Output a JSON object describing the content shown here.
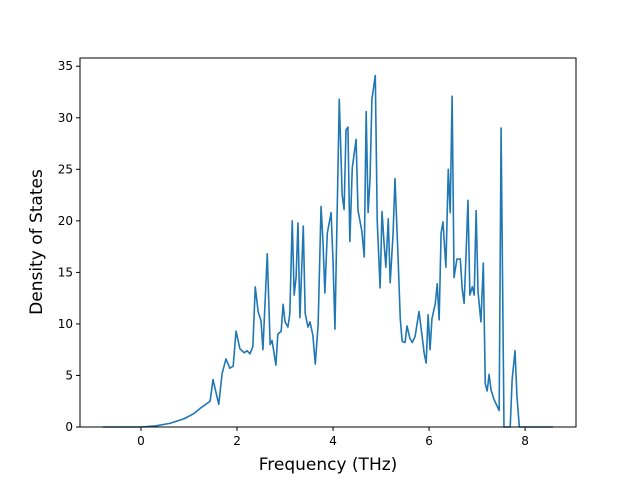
{
  "chart_data": {
    "type": "line",
    "x_label": "Frequency (THz)",
    "y_label": "Density of States",
    "x": [
      -0.8,
      0,
      0.3,
      0.6,
      0.9,
      1.1,
      1.23,
      1.44,
      1.5,
      1.62,
      1.69,
      1.77,
      1.85,
      1.92,
      1.98,
      2.06,
      2.15,
      2.21,
      2.27,
      2.33,
      2.38,
      2.44,
      2.5,
      2.54,
      2.63,
      2.69,
      2.73,
      2.81,
      2.85,
      2.92,
      2.96,
      3.0,
      3.06,
      3.1,
      3.15,
      3.19,
      3.23,
      3.27,
      3.31,
      3.38,
      3.42,
      3.48,
      3.52,
      3.58,
      3.63,
      3.69,
      3.75,
      3.79,
      3.83,
      3.88,
      3.96,
      4.0,
      4.04,
      4.13,
      4.19,
      4.23,
      4.27,
      4.31,
      4.35,
      4.4,
      4.48,
      4.52,
      4.6,
      4.65,
      4.69,
      4.73,
      4.77,
      4.81,
      4.88,
      4.92,
      4.98,
      5.02,
      5.06,
      5.1,
      5.15,
      5.19,
      5.25,
      5.29,
      5.35,
      5.4,
      5.44,
      5.5,
      5.54,
      5.6,
      5.65,
      5.71,
      5.79,
      5.85,
      5.9,
      5.94,
      5.98,
      6.02,
      6.06,
      6.13,
      6.17,
      6.21,
      6.25,
      6.29,
      6.35,
      6.4,
      6.44,
      6.48,
      6.52,
      6.58,
      6.65,
      6.69,
      6.73,
      6.77,
      6.81,
      6.85,
      6.9,
      6.94,
      6.98,
      7.02,
      7.08,
      7.13,
      7.17,
      7.21,
      7.25,
      7.29,
      7.35,
      7.42,
      7.46,
      7.5,
      7.56,
      7.69,
      7.73,
      7.79,
      7.83,
      7.88,
      8.58
    ],
    "series": [
      {
        "color": "#1f77b4",
        "values": [
          0,
          0,
          0.1,
          0.35,
          0.8,
          1.3,
          1.8,
          2.5,
          4.6,
          2.2,
          5.2,
          6.6,
          5.7,
          5.9,
          9.3,
          7.6,
          7.2,
          7.4,
          7.1,
          7.8,
          13.6,
          11.2,
          10.3,
          7.5,
          16.8,
          8.0,
          8.4,
          6.0,
          9.0,
          9.3,
          11.9,
          10.2,
          9.7,
          11.0,
          20.0,
          12.8,
          14.5,
          19.8,
          10.6,
          19.5,
          11.0,
          9.7,
          10.2,
          8.9,
          6.1,
          10.0,
          21.4,
          18.0,
          13.0,
          18.8,
          20.8,
          16.0,
          9.5,
          31.8,
          22.5,
          21.1,
          28.8,
          29.1,
          18.0,
          25.1,
          27.9,
          21.0,
          19.0,
          16.5,
          30.6,
          20.8,
          24.0,
          31.8,
          34.1,
          20.0,
          13.5,
          20.9,
          18.0,
          15.5,
          20.2,
          14.0,
          18.7,
          24.1,
          17.0,
          10.5,
          8.3,
          8.2,
          9.8,
          8.6,
          8.2,
          8.8,
          11.2,
          9.0,
          7.1,
          6.2,
          10.9,
          7.5,
          10.5,
          12.0,
          13.9,
          10.4,
          18.8,
          19.9,
          15.5,
          25.0,
          20.8,
          32.1,
          14.5,
          16.3,
          16.3,
          13.4,
          12.0,
          16.7,
          22.0,
          12.8,
          13.6,
          12.8,
          21.0,
          13.1,
          10.2,
          15.9,
          4.2,
          3.5,
          5.1,
          3.6,
          2.7,
          2.0,
          1.6,
          29.0,
          0,
          0,
          4.6,
          7.4,
          3.0,
          0,
          0
        ]
      }
    ],
    "xlim": [
      -1.27,
      9.06
    ],
    "xticks": [
      0,
      2,
      4,
      6,
      8
    ],
    "ylim": [
      0,
      35.8
    ],
    "yticks": [
      0,
      5,
      10,
      15,
      20,
      25,
      30,
      35
    ]
  }
}
